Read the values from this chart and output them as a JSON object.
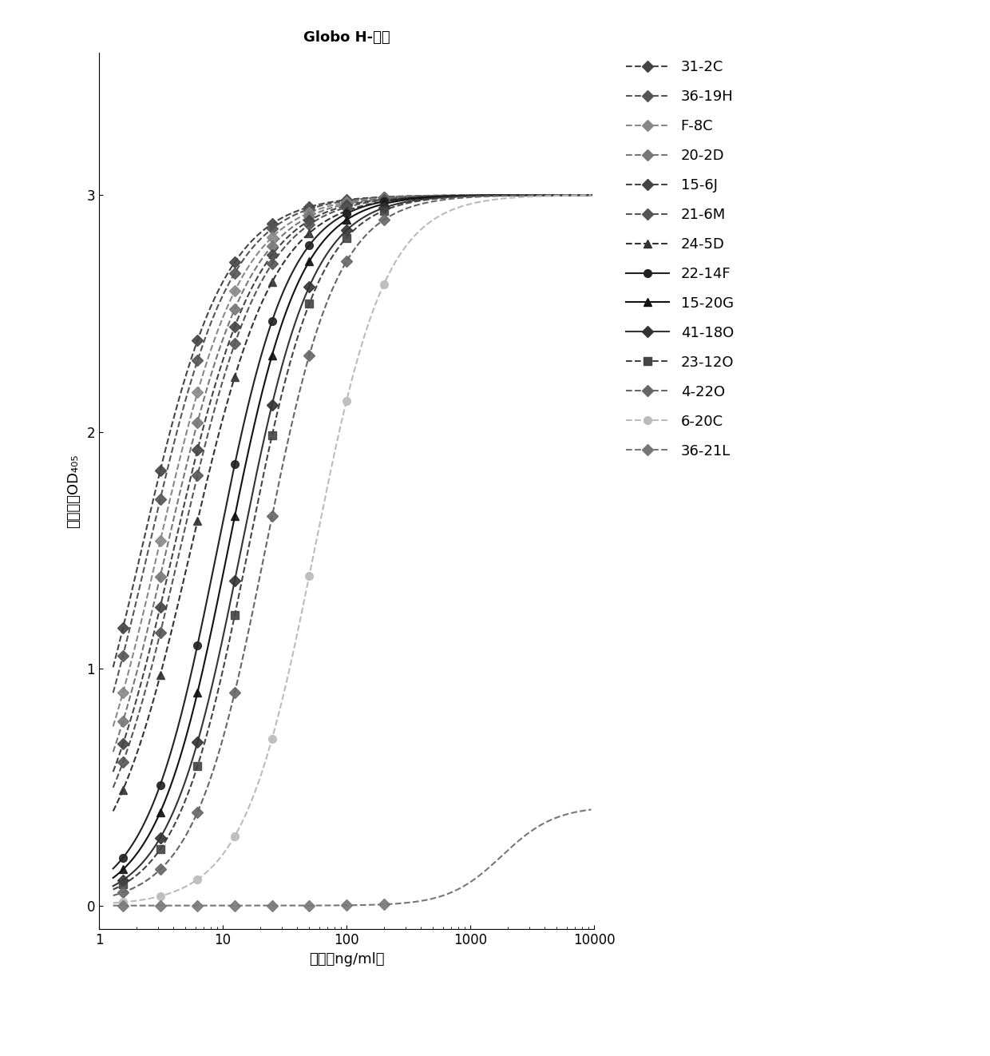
{
  "title": "Globo H-脂质",
  "xlabel": "浓度（ng/ml）",
  "ylabel": "吸光度，OD₄₀₅",
  "xlim_log": [
    0.176,
    4.0
  ],
  "ylim": [
    -0.1,
    3.6
  ],
  "yticks": [
    0,
    1,
    2,
    3
  ],
  "series": [
    {
      "label": "31-2C",
      "color": "#555555",
      "marker": "D",
      "linestyle": "--",
      "Emax": 3.0,
      "EC50": 2.2,
      "n": 1.3
    },
    {
      "label": "36-19H",
      "color": "#666666",
      "marker": "D",
      "linestyle": "--",
      "Emax": 3.0,
      "EC50": 2.5,
      "n": 1.3
    },
    {
      "label": "F-8C",
      "color": "#888888",
      "marker": "D",
      "linestyle": "--",
      "Emax": 3.0,
      "EC50": 3.0,
      "n": 1.3
    },
    {
      "label": "20-2D",
      "color": "#777777",
      "marker": "D",
      "linestyle": "--",
      "Emax": 3.0,
      "EC50": 3.5,
      "n": 1.3
    },
    {
      "label": "15-6J",
      "color": "#444444",
      "marker": "D",
      "linestyle": "--",
      "Emax": 3.0,
      "EC50": 4.0,
      "n": 1.3
    },
    {
      "label": "21-6M",
      "color": "#555555",
      "marker": "D",
      "linestyle": "--",
      "Emax": 3.0,
      "EC50": 4.5,
      "n": 1.3
    },
    {
      "label": "24-5D",
      "color": "#333333",
      "marker": "^",
      "linestyle": "--",
      "Emax": 3.0,
      "EC50": 5.5,
      "n": 1.3
    },
    {
      "label": "22-14F",
      "color": "#222222",
      "marker": "o",
      "linestyle": "-",
      "Emax": 3.0,
      "EC50": 9.0,
      "n": 1.5
    },
    {
      "label": "15-20G",
      "color": "#111111",
      "marker": "^",
      "linestyle": "-",
      "Emax": 3.0,
      "EC50": 11.0,
      "n": 1.5
    },
    {
      "label": "41-18O",
      "color": "#333333",
      "marker": "D",
      "linestyle": "-",
      "Emax": 3.0,
      "EC50": 14.0,
      "n": 1.5
    },
    {
      "label": "23-12O",
      "color": "#444444",
      "marker": "s",
      "linestyle": "--",
      "Emax": 3.0,
      "EC50": 16.0,
      "n": 1.5
    },
    {
      "label": "4-22O",
      "color": "#666666",
      "marker": "D",
      "linestyle": "--",
      "Emax": 3.0,
      "EC50": 22.0,
      "n": 1.5
    },
    {
      "label": "6-20C",
      "color": "#bbbbbb",
      "marker": "o",
      "linestyle": "--",
      "Emax": 3.0,
      "EC50": 55.0,
      "n": 1.5
    },
    {
      "label": "36-21L",
      "color": "#777777",
      "marker": "D",
      "linestyle": "--",
      "Emax": 0.42,
      "EC50": 1800.0,
      "n": 2.0
    }
  ],
  "x_data_points": [
    1.563,
    3.125,
    6.25,
    12.5,
    25.0,
    50.0,
    100.0,
    200.0
  ],
  "background_color": "#ffffff",
  "title_fontsize": 13,
  "label_fontsize": 13,
  "tick_fontsize": 12,
  "legend_fontsize": 13
}
